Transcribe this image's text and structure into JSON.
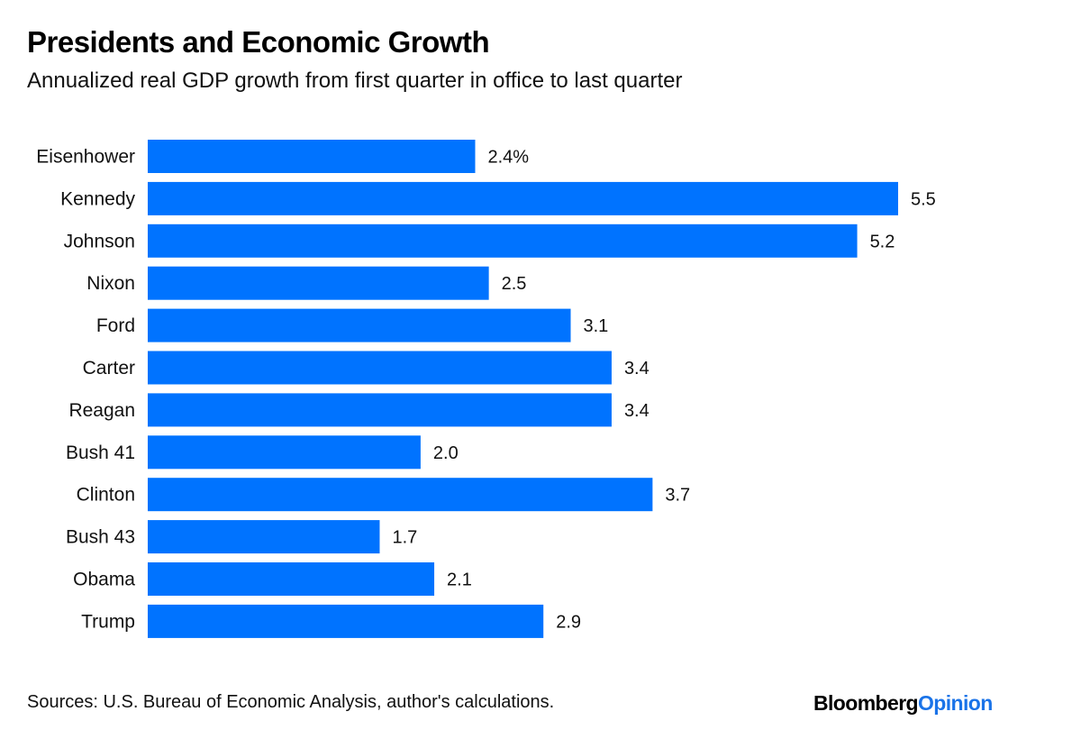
{
  "header": {
    "title": "Presidents and Economic Growth",
    "subtitle": "Annualized real GDP growth from first quarter in office to last quarter"
  },
  "footer": {
    "source": "Sources: U.S. Bureau of Economic Analysis, author's calculations.",
    "logo_part1": "Bloomberg",
    "logo_part2": "Opinion"
  },
  "colors": {
    "bar": "#0073ff",
    "logo_accent": "#1a73e8"
  },
  "chart_data": {
    "type": "bar",
    "orientation": "horizontal",
    "title": "Presidents and Economic Growth",
    "subtitle": "Annualized real GDP growth from first quarter in office to last quarter",
    "xlabel": "",
    "ylabel": "",
    "unit_suffix_first": "%",
    "categories": [
      "Eisenhower",
      "Kennedy",
      "Johnson",
      "Nixon",
      "Ford",
      "Carter",
      "Reagan",
      "Bush 41",
      "Clinton",
      "Bush 43",
      "Obama",
      "Trump"
    ],
    "values": [
      2.4,
      5.5,
      5.2,
      2.5,
      3.1,
      3.4,
      3.4,
      2.0,
      3.7,
      1.7,
      2.1,
      2.9
    ],
    "value_labels": [
      "2.4%",
      "5.5",
      "5.2",
      "2.5",
      "3.1",
      "3.4",
      "3.4",
      "2.0",
      "3.7",
      "1.7",
      "2.1",
      "2.9"
    ],
    "xlim": [
      0,
      5.5
    ],
    "grid": false,
    "legend": "none"
  }
}
